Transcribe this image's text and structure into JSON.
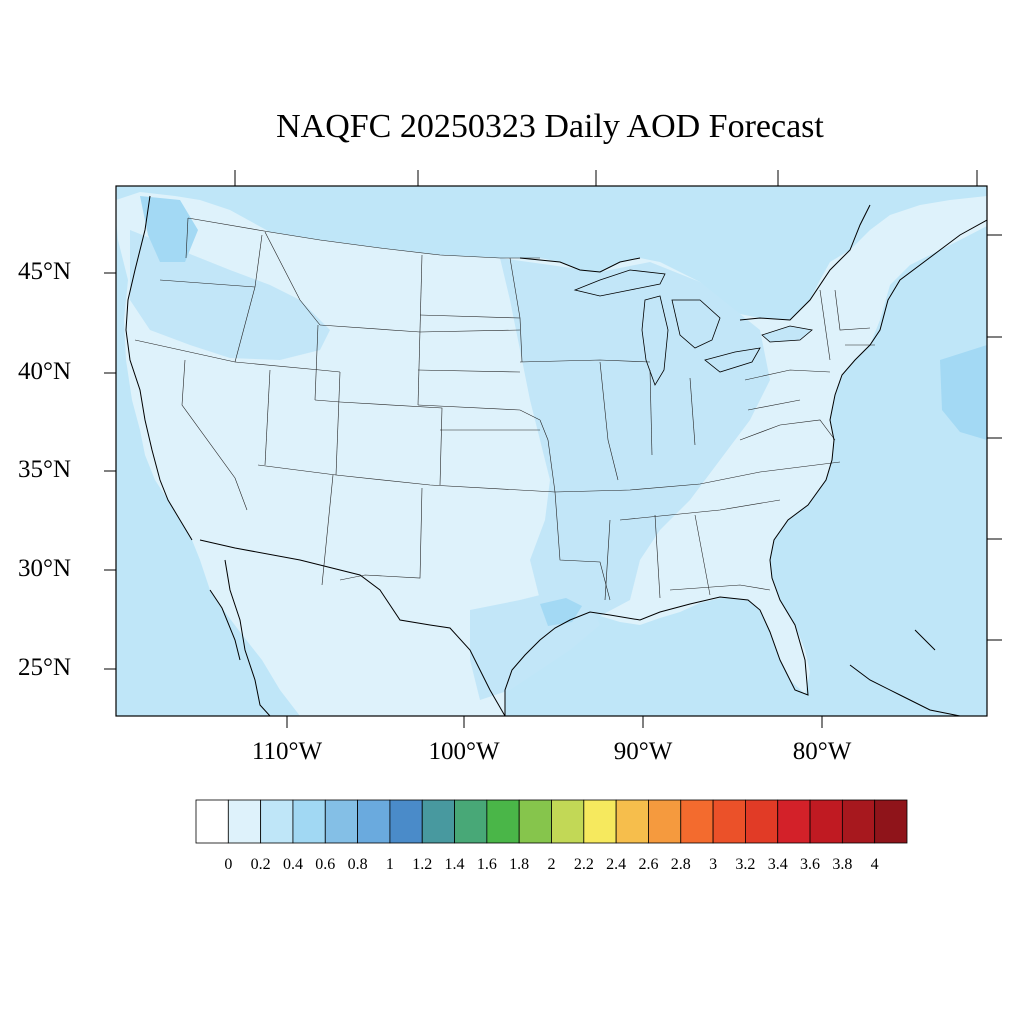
{
  "title": "NAQFC 20250323 Daily AOD Forecast",
  "colors": {
    "ocean": "#bfe6f8",
    "land_low": "#def2fb",
    "land_mid": "#c2e6f8",
    "plume": "#a3d9f4",
    "boundary": "#222222",
    "coast": "#000000"
  },
  "axes": {
    "lat_labels": [
      "45°N",
      "40°N",
      "35°N",
      "30°N",
      "25°N"
    ],
    "lon_labels": [
      "110°W",
      "100°W",
      "90°W",
      "80°W"
    ]
  },
  "colorbar": {
    "labels": [
      "0",
      "0.2",
      "0.4",
      "0.6",
      "0.8",
      "1",
      "1.2",
      "1.4",
      "1.6",
      "1.8",
      "2",
      "2.2",
      "2.4",
      "2.6",
      "2.8",
      "3",
      "3.2",
      "3.4",
      "3.6",
      "3.8",
      "4"
    ],
    "colors": [
      "#ffffff",
      "#def2fb",
      "#bfe6f8",
      "#a1d8f3",
      "#84bfe6",
      "#6aaade",
      "#4a8bc9",
      "#48999f",
      "#48a877",
      "#4ab648",
      "#86c54c",
      "#c2d856",
      "#f6e95e",
      "#f6be4c",
      "#f59a3e",
      "#f36b2e",
      "#eb5129",
      "#e13b26",
      "#d32129",
      "#c01a22",
      "#a7181e",
      "#8f141a"
    ]
  }
}
